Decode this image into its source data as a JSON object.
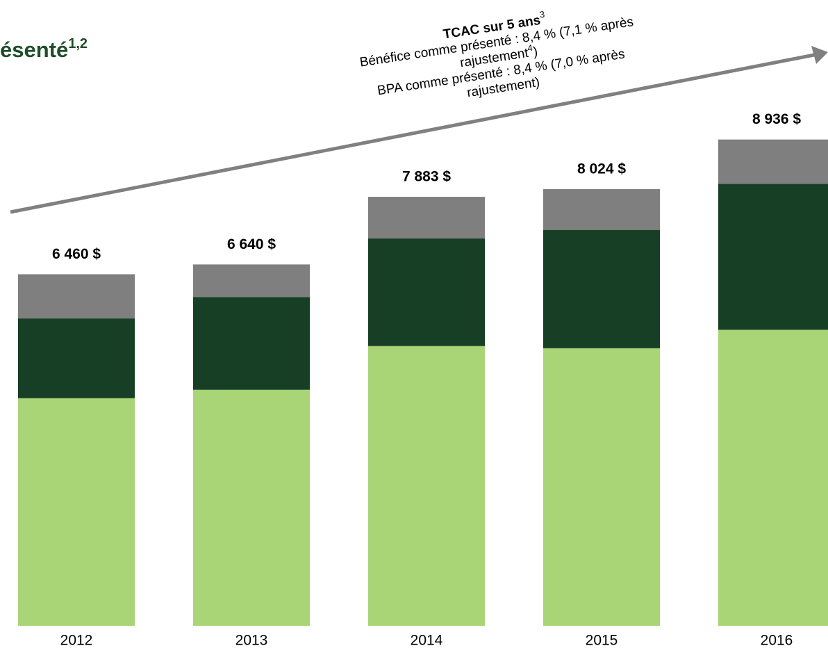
{
  "chart_data": {
    "type": "bar",
    "stacked": true,
    "title": "ésenté",
    "title_sup": "1,2",
    "annotation": {
      "heading": "TCAC sur 5 ans",
      "heading_sup": "3",
      "line1": "Bénéfice comme présenté : 8,4 % (7,1 % après",
      "line2": "rajustement",
      "line2_sup": "4",
      "line2_end": ")",
      "line3": "BPA comme présenté : 8,4 % (7,0 % après",
      "line4": "rajustement)"
    },
    "categories": [
      "2012",
      "2013",
      "2014",
      "2015",
      "2016"
    ],
    "series": [
      {
        "color": "#aad576",
        "values": [
          4183,
          4336,
          5140,
          5100,
          5440
        ]
      },
      {
        "color": "#173f25",
        "values": [
          1467,
          1706,
          1977,
          2175,
          2682
        ]
      },
      {
        "color": "#7f7f7f",
        "values": [
          810,
          598,
          766,
          749,
          814
        ]
      }
    ],
    "totals": [
      6460,
      6640,
      7883,
      8024,
      8936
    ],
    "value_labels": [
      "6 460 $",
      "6 640 $",
      "7 883 $",
      "8 024 $",
      "8 936 $"
    ],
    "ylim": [
      0,
      11500
    ]
  }
}
